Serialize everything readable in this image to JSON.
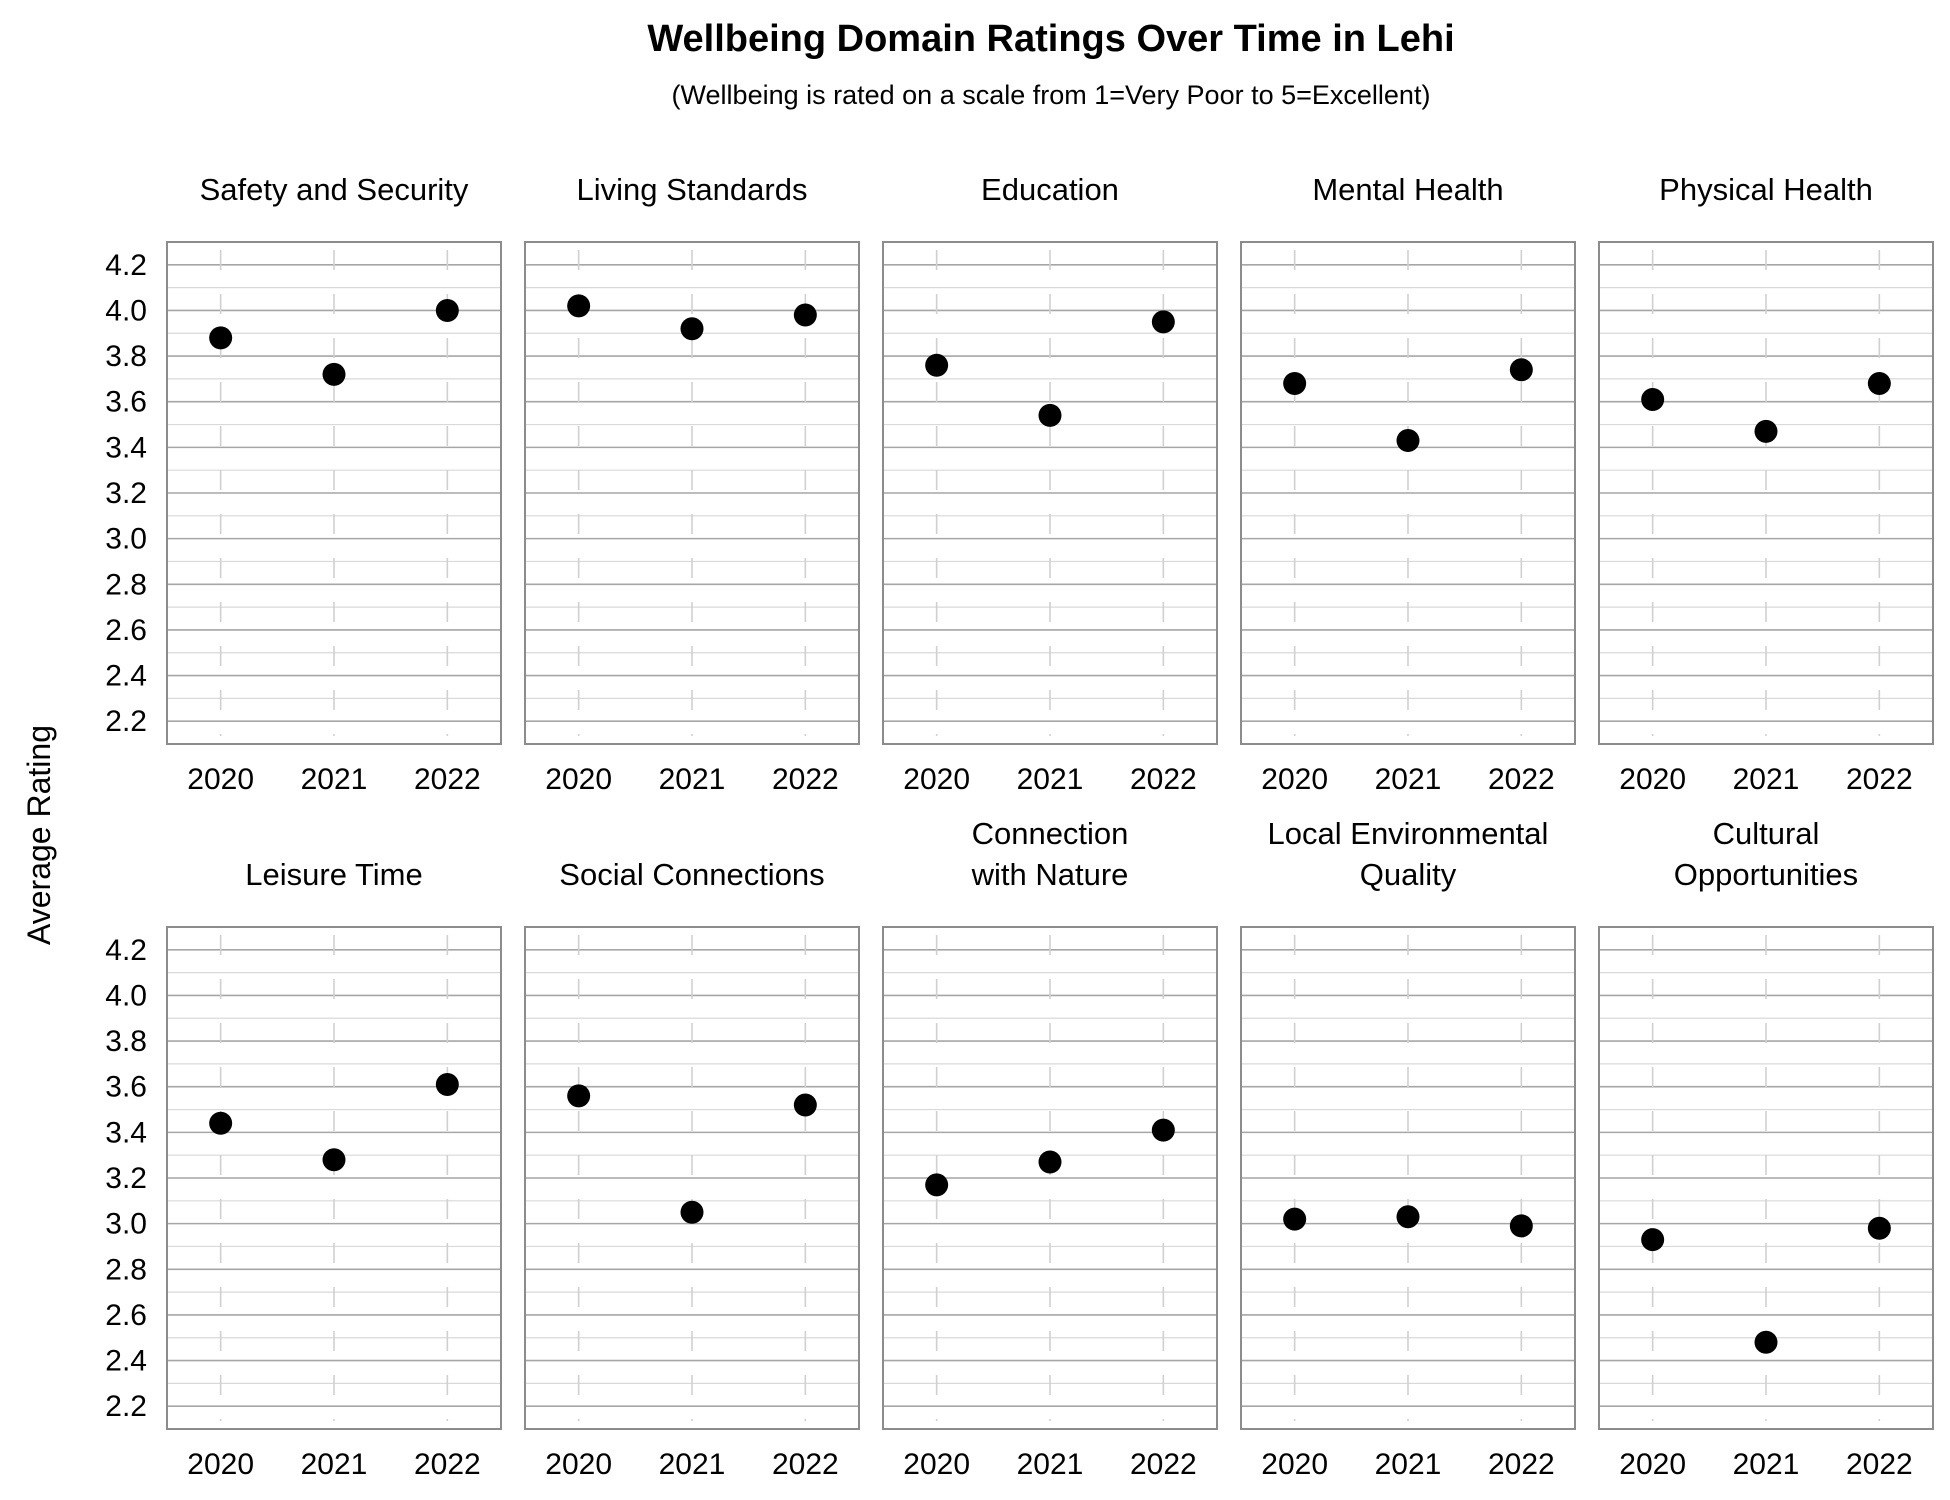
{
  "chart_data": {
    "type": "scatter",
    "title": "Wellbeing Domain Ratings Over Time in Lehi",
    "subtitle": "(Wellbeing is rated on a scale from 1=Very Poor to 5=Excellent)",
    "xlabel": "",
    "ylabel": "Average Rating",
    "x": [
      "2020",
      "2021",
      "2022"
    ],
    "ylim": [
      2.1,
      4.3
    ],
    "yticks": [
      "4.2",
      "4.0",
      "3.8",
      "3.6",
      "3.4",
      "3.2",
      "3.0",
      "2.8",
      "2.6",
      "2.4",
      "2.2"
    ],
    "grid": true,
    "panels": [
      {
        "name": "Safety and Security",
        "title_lines": [
          "Safety and Security"
        ],
        "values": [
          3.88,
          3.72,
          4.0
        ]
      },
      {
        "name": "Living Standards",
        "title_lines": [
          "Living Standards"
        ],
        "values": [
          4.02,
          3.92,
          3.98
        ]
      },
      {
        "name": "Education",
        "title_lines": [
          "Education"
        ],
        "values": [
          3.76,
          3.54,
          3.95
        ]
      },
      {
        "name": "Mental Health",
        "title_lines": [
          "Mental Health"
        ],
        "values": [
          3.68,
          3.43,
          3.74
        ]
      },
      {
        "name": "Physical Health",
        "title_lines": [
          "Physical Health"
        ],
        "values": [
          3.61,
          3.47,
          3.68
        ]
      },
      {
        "name": "Leisure Time",
        "title_lines": [
          "Leisure Time"
        ],
        "values": [
          3.44,
          3.28,
          3.61
        ]
      },
      {
        "name": "Social Connections",
        "title_lines": [
          "Social Connections"
        ],
        "values": [
          3.56,
          3.05,
          3.52
        ]
      },
      {
        "name": "Connection with Nature",
        "title_lines": [
          "Connection",
          "with Nature"
        ],
        "values": [
          3.17,
          3.27,
          3.41
        ]
      },
      {
        "name": "Local Environmental Quality",
        "title_lines": [
          "Local Environmental",
          "Quality"
        ],
        "values": [
          3.02,
          3.03,
          2.99
        ]
      },
      {
        "name": "Cultural Opportunities",
        "title_lines": [
          "Cultural",
          "Opportunities"
        ],
        "values": [
          2.93,
          2.48,
          2.98
        ]
      }
    ]
  }
}
